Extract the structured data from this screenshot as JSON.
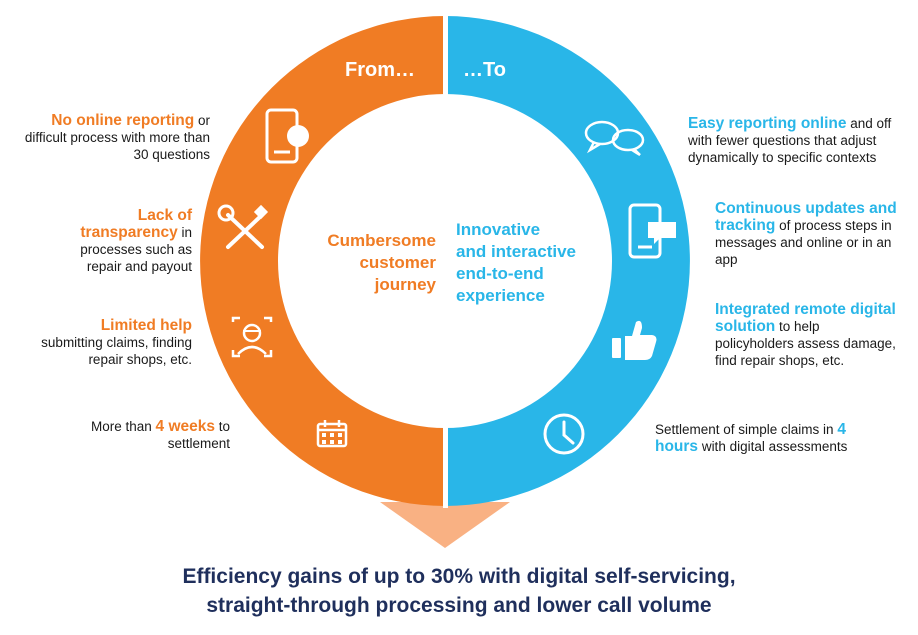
{
  "header": {
    "from": "From…",
    "to": "…To"
  },
  "center": {
    "left": [
      "Cumbersome",
      "customer",
      "journey"
    ],
    "right": [
      "Innovative",
      "and interactive",
      "end-to-end",
      "experience"
    ]
  },
  "left_items": [
    {
      "highlight": "No online reporting",
      "text": " or difficult process with more than 30 questions",
      "icon": "smartphone-icon"
    },
    {
      "highlight": "Lack of transparency",
      "text": " in processes such as repair and payout",
      "icon": "tools-icon"
    },
    {
      "highlight": "Limited help",
      "text": " submitting claims, finding repair shops, etc.",
      "icon": "support-agent-icon"
    },
    {
      "pre": "More than ",
      "highlight": "4 weeks",
      "text": " to settlement",
      "icon": "calendar-icon"
    }
  ],
  "right_items": [
    {
      "highlight": "Easy reporting online",
      "text": " and off with fewer questions that adjust dynamically to specific contexts",
      "icon": "chat-bubbles-icon"
    },
    {
      "highlight": "Continuous updates and tracking",
      "text": " of process steps in messages and online or in an app",
      "icon": "phone-message-icon"
    },
    {
      "highlight": "Integrated remote digital solution",
      "text": " to help policyholders assess damage, find repair shops, etc.",
      "icon": "thumbs-up-icon"
    },
    {
      "pre": "Settlement of simple claims in ",
      "highlight": "4 hours",
      "text": " with digital assessments",
      "icon": "clock-icon"
    }
  ],
  "footer": {
    "line1": "Efficiency gains of up to 30% with digital self-servicing,",
    "line2": "straight-through processing and lower call volume"
  },
  "colors": {
    "orange": "#f07c24",
    "blue": "#29b6e8",
    "light_orange": "#f9b183",
    "navy": "#1f2f5c"
  }
}
